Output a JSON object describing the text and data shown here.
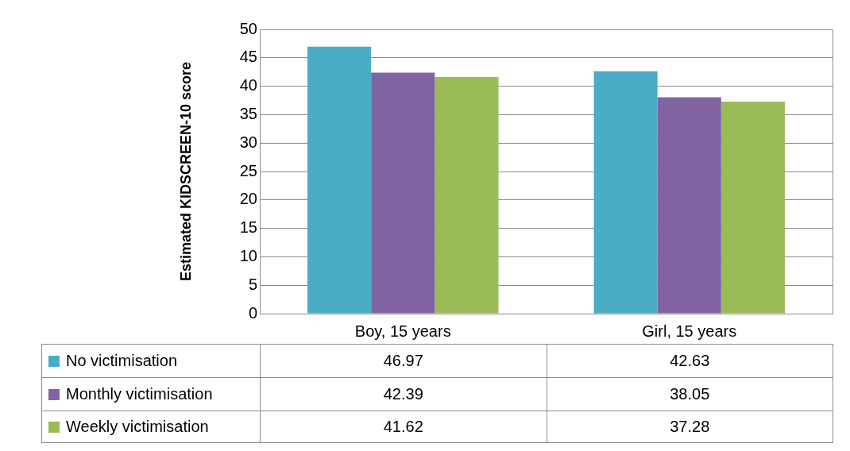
{
  "chart_data": {
    "type": "bar",
    "ylabel": "Estimated KIDSCREEN-10 score",
    "categories": [
      "Boy, 15 years",
      "Girl, 15 years"
    ],
    "series": [
      {
        "name": "No victimisation",
        "color": "#4bacc6",
        "values": [
          46.97,
          42.63
        ]
      },
      {
        "name": "Monthly victimisation",
        "color": "#8064a2",
        "values": [
          42.39,
          38.05
        ]
      },
      {
        "name": "Weekly victimisation",
        "color": "#9bbb59",
        "values": [
          41.62,
          37.28
        ]
      }
    ],
    "ylim": [
      0,
      50
    ],
    "yticks": [
      0,
      5,
      10,
      15,
      20,
      25,
      30,
      35,
      40,
      45,
      50
    ],
    "grid": "y",
    "legend": "bottom left",
    "data_labels": true
  }
}
